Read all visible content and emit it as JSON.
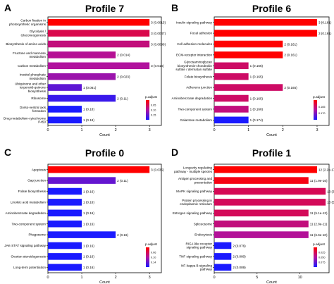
{
  "colors": {
    "high": "#ff0000",
    "mid": "#b0129f",
    "low": "#1a1aff",
    "background": "#ffffff",
    "axis": "#000000"
  },
  "chart_data": [
    {
      "type": "bar",
      "orientation": "horizontal",
      "panel_label": "A",
      "title": "Profile 7",
      "xlabel": "Count",
      "xlim": [
        0,
        3.35
      ],
      "xticks": [
        "0",
        "1",
        "2",
        "3"
      ],
      "categories": [
        "Carbon fixation in photosynthetic organisms",
        "Glycolysis / Gluconeogenesis",
        "Biosynthesis of amino acids",
        "Fructose and mannose metabolism",
        "Carbon metabolism",
        "Inositol phosphate metabolism",
        "Ubiquinone and other terpenoid-quinone biosynthesis",
        "Ribosome",
        "Dorso-ventral axis formation",
        "Drug metabolism-cytochrome P450"
      ],
      "values": [
        3,
        3,
        3,
        2,
        3,
        2,
        1,
        2,
        1,
        1
      ],
      "bar_labels": [
        "3 (0.0015)",
        "3 (0.0047)",
        "3 (0.0096)",
        "2 (0.014)",
        "3 (0.016)",
        "2 (0.023)",
        "1 (0.061)",
        "2 (0.11)",
        "1 (0.18)",
        "1 (0.18)"
      ],
      "p_adjust": [
        0.0015,
        0.0047,
        0.0096,
        0.014,
        0.016,
        0.023,
        0.061,
        0.11,
        0.18,
        0.18
      ],
      "legend": {
        "title": "p.adjust",
        "ticks": [
          "0.05",
          "0.10",
          "0.15"
        ],
        "placement": "bottom-right"
      }
    },
    {
      "type": "bar",
      "orientation": "horizontal",
      "panel_label": "B",
      "title": "Profile 6",
      "xlabel": "Count",
      "xlim": [
        0,
        3.35
      ],
      "xticks": [
        "0",
        "1",
        "2",
        "3"
      ],
      "categories": [
        "Insulin signaling pathway",
        "Focal adhesion",
        "Cell adhesion molecules",
        "ECM-receptor interaction",
        "Glycosaminoglycan biosynthesis-chondroitin sulfate / dermatan sulfate",
        "Folate biosynthesis",
        "Adherens junction",
        "Aminobenzoate degradation",
        "Two-component system",
        "Galactose metabolism"
      ],
      "values": [
        3,
        3,
        2,
        2,
        1,
        1,
        2,
        1,
        1,
        1
      ],
      "bar_labels": [
        "3 (0.161)",
        "3 (0.161)",
        "2 (0.161)",
        "2 (0.161)",
        "1 (0.165)",
        "1 (0.165)",
        "2 (0.165)",
        "1 (0.165)",
        "1 (0.166)",
        "1 (0.174)"
      ],
      "p_adjust": [
        0.161,
        0.161,
        0.161,
        0.161,
        0.165,
        0.165,
        0.165,
        0.165,
        0.166,
        0.174
      ],
      "legend": {
        "title": "p.adjust",
        "ticks": [
          "0.165",
          "0.170"
        ],
        "placement": "bottom-right"
      }
    },
    {
      "type": "bar",
      "orientation": "horizontal",
      "panel_label": "C",
      "title": "Profile 0",
      "xlabel": "Count",
      "xlim": [
        0,
        3.35
      ],
      "xticks": [
        "0",
        "1",
        "2",
        "3"
      ],
      "categories": [
        "Apoptosis",
        "Gap junction",
        "Folate biosynthesis",
        "Linoleic acid metabolism",
        "Aminobenzoate degradation",
        "Two-component system",
        "Phagosome",
        "JAK-STAT signaling pathway",
        "Ovarian steroidogenesis",
        "Long-term potentiation"
      ],
      "values": [
        3,
        2,
        1,
        1,
        1,
        1,
        2,
        1,
        1,
        1
      ],
      "bar_labels": [
        "3 (0.035)",
        "2 (0.11)",
        "1 (0.16)",
        "1 (0.16)",
        "1 (0.16)",
        "1 (0.16)",
        "2 (0.16)",
        "1 (0.16)",
        "1 (0.16)",
        "1 (0.16)"
      ],
      "p_adjust": [
        0.035,
        0.11,
        0.16,
        0.16,
        0.16,
        0.16,
        0.16,
        0.16,
        0.16,
        0.16
      ],
      "legend": {
        "title": "p.adjust",
        "ticks": [
          "0.06",
          "0.10",
          "0.14"
        ],
        "placement": "bottom-right"
      }
    },
    {
      "type": "bar",
      "orientation": "horizontal",
      "panel_label": "D",
      "title": "Profile 1",
      "xlabel": "Count",
      "xlim": [
        0,
        13.4
      ],
      "xticks": [
        "0",
        "5",
        "10"
      ],
      "categories": [
        "Longevity regulating pathway - multiple species",
        "Antigen processing and presentation",
        "MAPK signaling pathway",
        "Protein processing in endoplasmic reticulum",
        "Estrogen signaling pathway",
        "Spliceosome",
        "Endocytosis",
        "RIG-I-like receptor signaling pathway",
        "TNF signaling pathway",
        "NF-kappa B signaling pathway"
      ],
      "values": [
        12,
        11,
        13,
        13,
        11,
        11,
        11,
        2,
        2,
        2
      ],
      "bar_labels": [
        "12 (2.2e-17)",
        "11 (1.9e-16)",
        "13 (3.2e-13)",
        "13 (5.1e-13)",
        "11 (5.1e-13)",
        "11 (2.8e-11)",
        "11 (6.6e-10)",
        "2 (0.076)",
        "2 (0.080)",
        "2 (0.089)"
      ],
      "p_adjust": [
        2.2e-17,
        1.9e-16,
        3.2e-13,
        5.1e-13,
        5.1e-13,
        2.8e-11,
        6.6e-10,
        0.076,
        0.08,
        0.089
      ],
      "legend": {
        "title": "p.adjust",
        "ticks": [
          "0.025",
          "0.050",
          "0.075"
        ],
        "placement": "bottom-right"
      }
    }
  ]
}
